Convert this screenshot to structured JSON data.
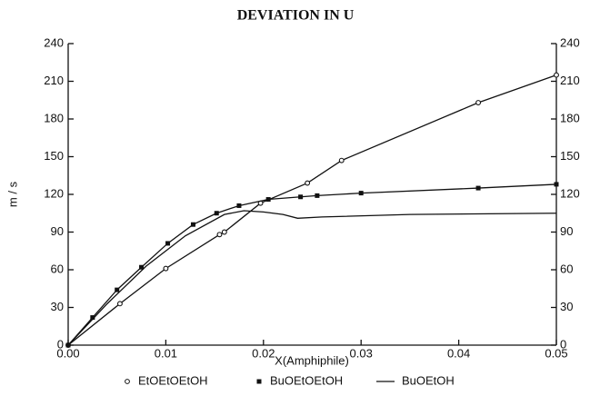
{
  "chart_data": {
    "type": "line",
    "title": "DEVIATION IN U",
    "xlabel": "X(Amphiphile)",
    "ylabel": "m / s",
    "xlim": [
      0,
      0.05
    ],
    "ylim": [
      0,
      240
    ],
    "y2lim": [
      0,
      240
    ],
    "xticks": [
      {
        "value": 0,
        "label": "0.00"
      },
      0.01,
      0.02,
      0.03,
      0.04,
      0.05
    ],
    "yticks": [
      0,
      30,
      60,
      90,
      120,
      150,
      180,
      210,
      240
    ],
    "y2ticks": [
      0,
      30,
      60,
      90,
      120,
      150,
      180,
      210,
      240
    ],
    "legend": "bottom",
    "series": [
      {
        "name": "EtOEtOEtOH",
        "color": "#111111",
        "marker": "circle",
        "x": [
          0,
          0.0053,
          0.01,
          0.0155,
          0.016,
          0.0197,
          0.0245,
          0.028,
          0.042,
          0.05
        ],
        "values": [
          0,
          33,
          61,
          88,
          90,
          113,
          129,
          147,
          193,
          215
        ]
      },
      {
        "name": "BuOEtOEtOH",
        "color": "#111111",
        "marker": "square",
        "x": [
          0,
          0.0025,
          0.005,
          0.0075,
          0.0102,
          0.0128,
          0.0152,
          0.0175,
          0.0205,
          0.0238,
          0.0255,
          0.03,
          0.042,
          0.05
        ],
        "values": [
          0,
          22,
          44,
          62,
          81,
          96,
          105,
          111,
          116,
          118,
          119,
          121,
          125,
          128
        ]
      },
      {
        "name": "BuOEtOH",
        "color": "#111111",
        "marker": "none",
        "x": [
          0,
          0.004,
          0.008,
          0.012,
          0.016,
          0.018,
          0.02,
          0.022,
          0.0235,
          0.026,
          0.035,
          0.05
        ],
        "values": [
          0,
          33,
          63,
          87,
          104,
          107,
          106,
          104,
          101,
          102,
          104,
          105
        ]
      }
    ]
  }
}
